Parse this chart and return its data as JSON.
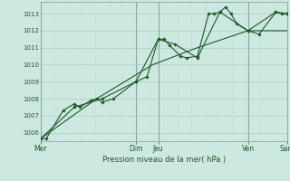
{
  "background_color": "#cce8e0",
  "grid_color_major": "#aaccc4",
  "grid_color_minor": "#c0dcd6",
  "line_color": "#1a5c28",
  "marker_color": "#1a5c28",
  "xlabel": "Pression niveau de la mer( hPa )",
  "ylim": [
    1005.5,
    1013.7
  ],
  "yticks": [
    1006,
    1007,
    1008,
    1009,
    1010,
    1011,
    1012,
    1013
  ],
  "xlim": [
    0,
    22
  ],
  "xtick_positions": [
    0,
    8.5,
    10.5,
    18.5,
    22
  ],
  "xtick_labels": [
    "Mer",
    "Dim",
    "Jeu",
    "Ven",
    "Sam"
  ],
  "vlines_dark": [
    0,
    8.5,
    10.5,
    18.5,
    22
  ],
  "vlines_light_count": 3,
  "series1_x": [
    0,
    0.5,
    2,
    3,
    3.5,
    4.5,
    5,
    5.5,
    6.5,
    8.5,
    9.5,
    10.5,
    11,
    11.5,
    12.5,
    13,
    14,
    15,
    15.5,
    16,
    16.5,
    17,
    17.5,
    18.5,
    19.5,
    21,
    21.5,
    22
  ],
  "series1_y": [
    1005.65,
    1005.65,
    1007.3,
    1007.7,
    1007.5,
    1007.9,
    1008.0,
    1007.8,
    1008.0,
    1009.0,
    1009.3,
    1011.5,
    1011.5,
    1011.15,
    1010.5,
    1010.4,
    1010.5,
    1013.0,
    1013.0,
    1013.1,
    1013.4,
    1013.0,
    1012.4,
    1012.0,
    1011.8,
    1013.1,
    1013.0,
    1013.0
  ],
  "series2_x": [
    0,
    3,
    5.5,
    8.5,
    10.5,
    12,
    14,
    16,
    18.5,
    21,
    22
  ],
  "series2_y": [
    1005.65,
    1007.5,
    1008.0,
    1009.0,
    1011.5,
    1011.2,
    1010.4,
    1013.1,
    1012.0,
    1013.1,
    1013.0
  ],
  "series3_x": [
    0,
    5,
    10,
    14,
    18.5,
    22
  ],
  "series3_y": [
    1005.65,
    1008.0,
    1010.0,
    1011.0,
    1012.0,
    1012.0
  ]
}
